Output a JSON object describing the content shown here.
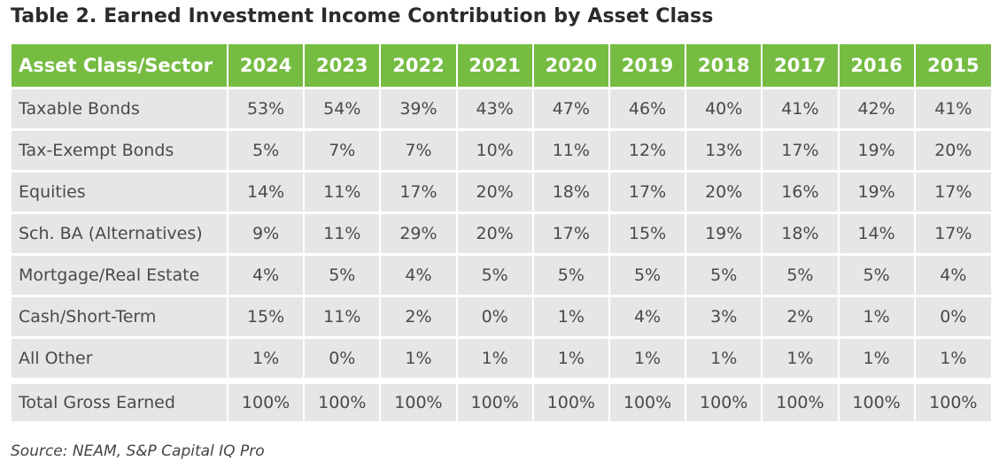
{
  "title": "Table 2. Earned Investment Income Contribution by Asset Class",
  "table": {
    "headers": [
      "Asset Class/Sector",
      "2024",
      "2023",
      "2022",
      "2021",
      "2020",
      "2019",
      "2018",
      "2017",
      "2016",
      "2015"
    ],
    "rows": [
      [
        "Taxable Bonds",
        "53%",
        "54%",
        "39%",
        "43%",
        "47%",
        "46%",
        "40%",
        "41%",
        "42%",
        "41%"
      ],
      [
        "Tax-Exempt Bonds",
        "5%",
        "7%",
        "7%",
        "10%",
        "11%",
        "12%",
        "13%",
        "17%",
        "19%",
        "20%"
      ],
      [
        "Equities",
        "14%",
        "11%",
        "17%",
        "20%",
        "18%",
        "17%",
        "20%",
        "16%",
        "19%",
        "17%"
      ],
      [
        "Sch. BA (Alternatives)",
        "9%",
        "11%",
        "29%",
        "20%",
        "17%",
        "15%",
        "19%",
        "18%",
        "14%",
        "17%"
      ],
      [
        "Mortgage/Real Estate",
        "4%",
        "5%",
        "4%",
        "5%",
        "5%",
        "5%",
        "5%",
        "5%",
        "5%",
        "4%"
      ],
      [
        "Cash/Short-Term",
        "15%",
        "11%",
        "2%",
        "0%",
        "1%",
        "4%",
        "3%",
        "2%",
        "1%",
        "0%"
      ],
      [
        "All Other",
        "1%",
        "0%",
        "1%",
        "1%",
        "1%",
        "1%",
        "1%",
        "1%",
        "1%",
        "1%"
      ]
    ],
    "total": [
      "Total Gross Earned",
      "100%",
      "100%",
      "100%",
      "100%",
      "100%",
      "100%",
      "100%",
      "100%",
      "100%",
      "100%"
    ]
  },
  "source": "Source: NEAM, S&P Capital IQ Pro",
  "colors": {
    "header_bg": "#76bc43",
    "cell_bg": "#e6e6e6"
  }
}
